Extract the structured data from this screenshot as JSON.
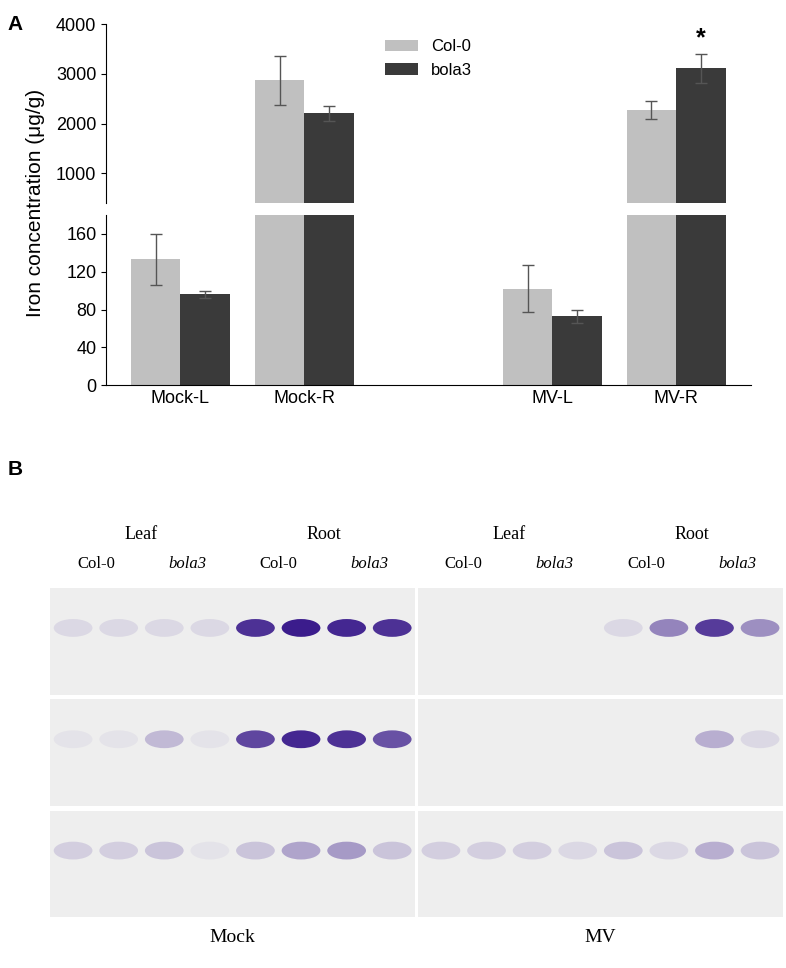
{
  "chart_data": {
    "type": "bar",
    "panel": "A",
    "y_label": "Iron concentration (μg/g)",
    "categories": [
      "Mock-L",
      "Mock-R",
      null,
      "MV-L",
      "MV-R"
    ],
    "series": [
      {
        "name": "Col-0",
        "color": "#c0c0c0",
        "values": [
          133,
          2870,
          null,
          102,
          2280
        ],
        "errors": [
          27,
          500,
          null,
          25,
          180
        ]
      },
      {
        "name": "bola3",
        "color": "#3a3a3a",
        "values": [
          96,
          2210,
          null,
          73,
          3110
        ],
        "errors": [
          4,
          150,
          null,
          7,
          300
        ]
      }
    ],
    "segments": [
      {
        "ylim": [
          400,
          4000
        ],
        "yticks": [
          1000,
          2000,
          3000,
          4000
        ]
      },
      {
        "ylim": [
          0,
          180
        ],
        "yticks": [
          0,
          40,
          80,
          120,
          160
        ]
      }
    ],
    "legend": "upper center",
    "annotations": [
      {
        "text": "*",
        "category": "MV-R",
        "series": "bola3"
      }
    ]
  },
  "panel_b": {
    "label": "B",
    "band_color": "#3b1c8c",
    "gels": [
      {
        "title": "Mock",
        "groups": [
          {
            "label": "Leaf",
            "lanes": [
              "Col-0",
              "bola3"
            ]
          },
          {
            "label": "Root",
            "lanes": [
              "Col-0",
              "bola3"
            ]
          }
        ],
        "rows": [
          [
            0.1,
            0.1,
            0.1,
            0.1,
            0.9,
            1.0,
            0.95,
            0.9
          ],
          [
            0.05,
            0.05,
            0.25,
            0.05,
            0.8,
            0.95,
            0.9,
            0.75
          ],
          [
            0.15,
            0.15,
            0.2,
            0.05,
            0.2,
            0.35,
            0.4,
            0.2
          ]
        ]
      },
      {
        "title": "MV",
        "groups": [
          {
            "label": "Leaf",
            "lanes": [
              "Col-0",
              "bola3"
            ]
          },
          {
            "label": "Root",
            "lanes": [
              "Col-0",
              "bola3"
            ]
          }
        ],
        "rows": [
          [
            0.0,
            0.0,
            0.0,
            0.0,
            0.1,
            0.5,
            0.85,
            0.45
          ],
          [
            0.0,
            0.0,
            0.0,
            0.0,
            0.0,
            0.0,
            0.3,
            0.1
          ],
          [
            0.15,
            0.15,
            0.15,
            0.1,
            0.2,
            0.1,
            0.3,
            0.2
          ]
        ]
      }
    ]
  }
}
